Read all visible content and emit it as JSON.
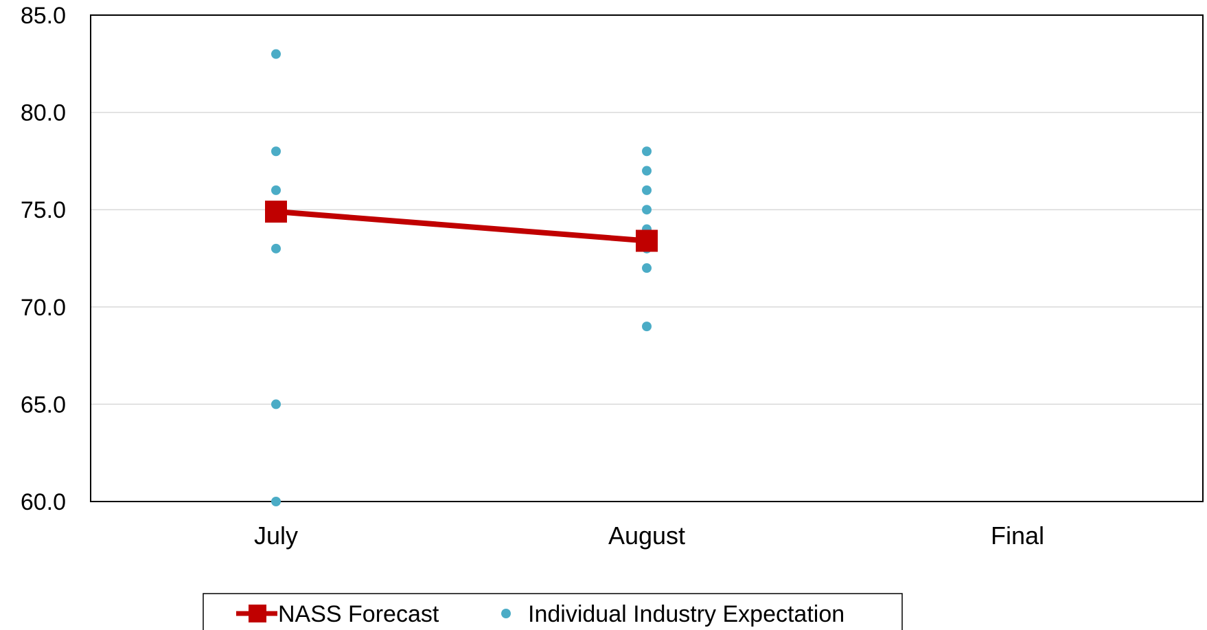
{
  "chart_data": {
    "type": "line",
    "title": "",
    "xlabel": "",
    "ylabel": "",
    "categories": [
      "July",
      "August",
      "Final"
    ],
    "ylim": [
      60.0,
      85.0
    ],
    "y_ticks": [
      "60.0",
      "65.0",
      "70.0",
      "75.0",
      "80.0",
      "85.0"
    ],
    "grid": true,
    "legend_position": "bottom",
    "series": [
      {
        "name": "NASS Forecast",
        "kind": "line-with-square-markers",
        "color": "#c00000",
        "values": [
          74.9,
          73.4,
          null
        ]
      },
      {
        "name": "Individual Industry Expectation",
        "kind": "scatter",
        "color": "#4bacc6",
        "points": [
          {
            "category": "July",
            "values": [
              83,
              78,
              76,
              75,
              73,
              65,
              60
            ]
          },
          {
            "category": "August",
            "values": [
              78,
              77,
              76,
              75,
              74,
              73,
              72,
              69
            ]
          },
          {
            "category": "Final",
            "values": []
          }
        ]
      }
    ]
  }
}
